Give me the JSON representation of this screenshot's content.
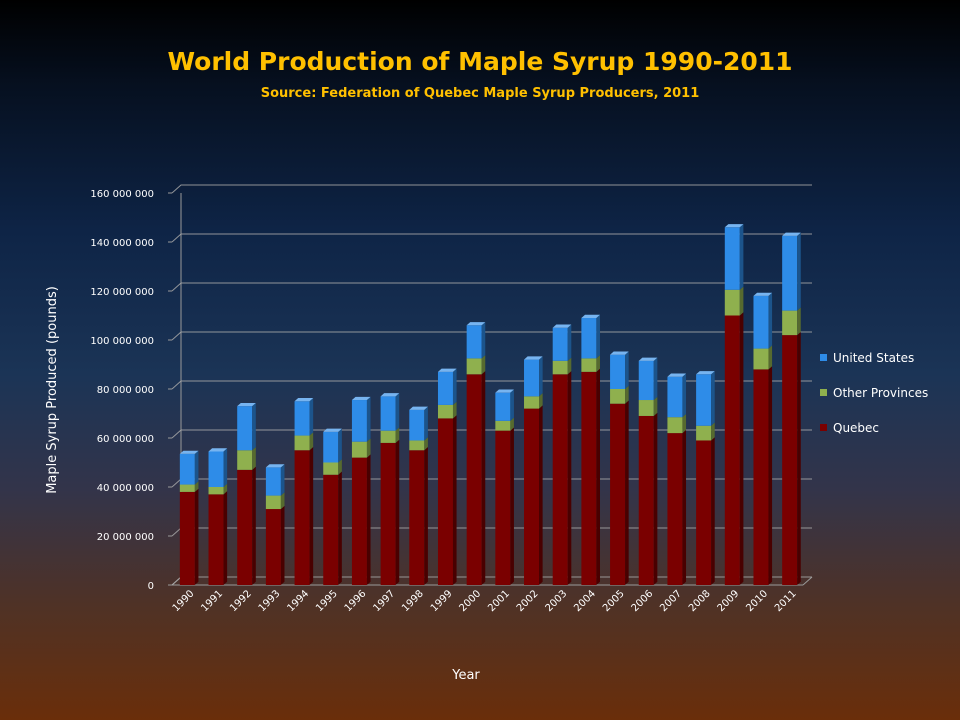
{
  "chart_data": {
    "type": "bar",
    "stacked": true,
    "title": "World Production of Maple Syrup 1990-2011",
    "subtitle": "Source:  Federation of Quebec Maple Syrup Producers, 2011",
    "xlabel": "Year",
    "ylabel": "Maple Syrup Produced (pounds)",
    "ylim": [
      0,
      160000000
    ],
    "yticks": [
      0,
      20000000,
      40000000,
      60000000,
      80000000,
      100000000,
      120000000,
      140000000,
      160000000
    ],
    "ytick_labels": [
      "0",
      "20 000 000",
      "40 000 000",
      "60 000 000",
      "80 000 000",
      "100 000 000",
      "120 000 000",
      "140 000 000",
      "160 000 000"
    ],
    "grid": true,
    "legend_position": "right",
    "categories": [
      "1990",
      "1991",
      "1992",
      "1993",
      "1994",
      "1995",
      "1996",
      "1997",
      "1998",
      "1999",
      "2000",
      "2001",
      "2002",
      "2003",
      "2004",
      "2005",
      "2006",
      "2007",
      "2008",
      "2009",
      "2010",
      "2011"
    ],
    "series": [
      {
        "name": "Quebec",
        "color": "#7a0000",
        "values": [
          38000000,
          37000000,
          47000000,
          31000000,
          55000000,
          45000000,
          52000000,
          58000000,
          55000000,
          68000000,
          86000000,
          63000000,
          72000000,
          86000000,
          87000000,
          74000000,
          69000000,
          62000000,
          59000000,
          110000000,
          88000000,
          102000000
        ]
      },
      {
        "name": "Other Provinces",
        "color": "#8fb04e",
        "values": [
          3000000,
          3000000,
          8000000,
          5500000,
          6000000,
          5000000,
          6500000,
          5000000,
          4000000,
          5500000,
          6500000,
          4000000,
          5000000,
          5500000,
          5500000,
          6000000,
          6500000,
          6500000,
          6000000,
          10500000,
          8500000,
          10000000
        ]
      },
      {
        "name": "United States",
        "color": "#2e8ce8",
        "values": [
          12500000,
          14500000,
          18000000,
          11500000,
          14000000,
          12500000,
          17000000,
          14000000,
          12500000,
          13500000,
          13500000,
          11500000,
          15000000,
          13500000,
          16500000,
          14000000,
          16000000,
          16500000,
          21000000,
          25500000,
          21500000,
          30500000
        ]
      }
    ]
  }
}
